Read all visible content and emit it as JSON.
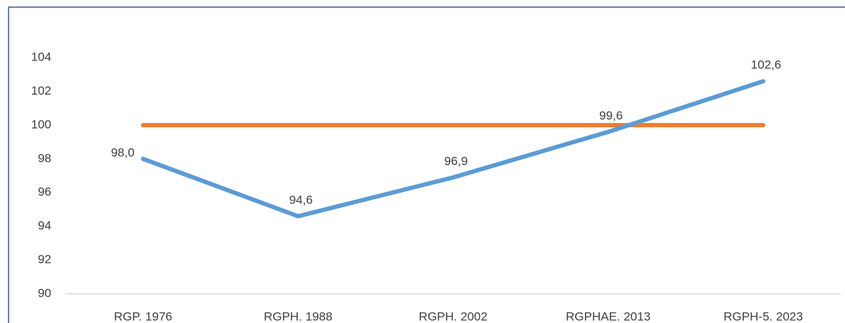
{
  "chart_data": {
    "type": "line",
    "categories": [
      "RGP. 1976",
      "RGPH. 1988",
      "RGPH. 2002",
      "RGPHAE. 2013",
      "RGPH-5. 2023"
    ],
    "series": [
      {
        "color": "#5b9bd5",
        "values": [
          98.0,
          94.6,
          96.9,
          99.6,
          102.6
        ],
        "value_labels": [
          "98,0",
          "94,6",
          "96,9",
          "99,6",
          "102,6"
        ]
      },
      {
        "color": "#ed7d31",
        "values": [
          100,
          100,
          100,
          100,
          100
        ]
      }
    ],
    "ylim": [
      90,
      104
    ],
    "yticks": [
      90,
      92,
      94,
      96,
      98,
      100,
      102,
      104
    ],
    "grid": false
  }
}
